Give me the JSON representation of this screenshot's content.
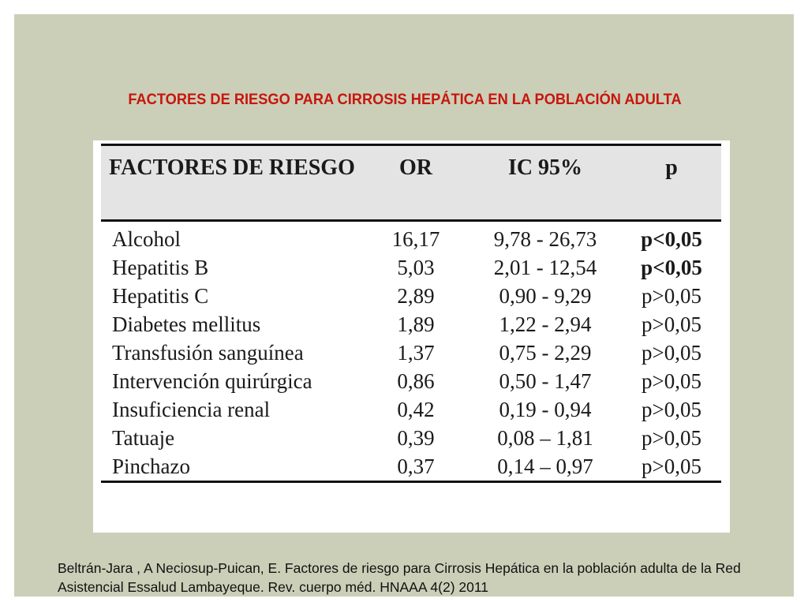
{
  "title": "FACTORES DE RIESGO PARA CIRROSIS HEPÁTICA EN LA POBLACIÓN ADULTA",
  "table": {
    "headers": {
      "factor": "FACTORES DE RIESGO",
      "or": "OR",
      "ic": "IC 95%",
      "p": "p"
    },
    "rows": [
      {
        "factor": "Alcohol",
        "or": "16,17",
        "ic": "9,78 - 26,73",
        "p": "p<0,05"
      },
      {
        "factor": "Hepatitis B",
        "or": "5,03",
        "ic": "2,01 - 12,54",
        "p": "p<0,05"
      },
      {
        "factor": "Hepatitis C",
        "or": "2,89",
        "ic": "0,90 - 9,29",
        "p": "p>0,05"
      },
      {
        "factor": "Diabetes mellitus",
        "or": "1,89",
        "ic": "1,22 - 2,94",
        "p": "p>0,05"
      },
      {
        "factor": "Transfusión sanguínea",
        "or": "1,37",
        "ic": "0,75 - 2,29",
        "p": "p>0,05"
      },
      {
        "factor": "Intervención quirúrgica",
        "or": "0,86",
        "ic": "0,50 - 1,47",
        "p": "p>0,05"
      },
      {
        "factor": "Insuficiencia renal",
        "or": "0,42",
        "ic": "0,19 - 0,94",
        "p": "p>0,05"
      },
      {
        "factor": "Tatuaje",
        "or": "0,39",
        "ic": "0,08 – 1,81",
        "p": "p>0,05"
      },
      {
        "factor": "Pinchazo",
        "or": "0,37",
        "ic": "0,14 – 0,97",
        "p": "p>0,05"
      }
    ]
  },
  "citation": "Beltrán-Jara , A Neciosup-Puican, E. Factores de riesgo para Cirrosis Hepática en la población adulta de la Red Asistencial Essalud Lambayeque. Rev. cuerpo méd. HNAAA 4(2) 2011",
  "colors": {
    "slide_background": "#cbcfb8",
    "title": "#c8150c",
    "header_background": "#e4e4e4"
  }
}
